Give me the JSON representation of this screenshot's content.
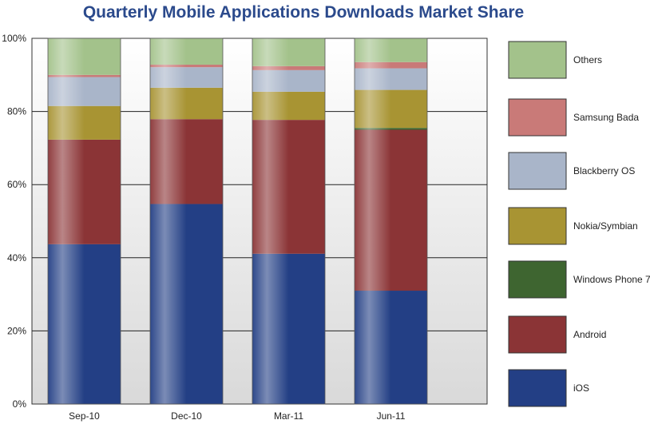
{
  "chart_data": {
    "type": "bar",
    "stacked": true,
    "title": "Quarterly Mobile Applications Downloads Market Share",
    "xlabel": "",
    "ylabel": "",
    "ylim": [
      0,
      100
    ],
    "yticks": [
      "0%",
      "20%",
      "40%",
      "60%",
      "80%",
      "100%"
    ],
    "ytick_values": [
      0,
      20,
      40,
      60,
      80,
      100
    ],
    "grid": true,
    "legend_position": "right",
    "categories": [
      "Sep-10",
      "Dec-10",
      "Mar-11",
      "Jun-11"
    ],
    "series": [
      {
        "name": "iOS",
        "color": "#233f85",
        "values": [
          43.7,
          54.7,
          41.1,
          31.0
        ]
      },
      {
        "name": "Android",
        "color": "#8b3436",
        "values": [
          28.6,
          23.2,
          36.6,
          44.0
        ]
      },
      {
        "name": "Windows Phone 7",
        "color": "#3e6530",
        "values": [
          0,
          0,
          0,
          0.5
        ]
      },
      {
        "name": "Nokia/Symbian",
        "color": "#a89433",
        "values": [
          9.2,
          8.6,
          7.7,
          10.4
        ]
      },
      {
        "name": "Blackberry OS",
        "color": "#a9b5c9",
        "values": [
          7.9,
          5.6,
          5.9,
          5.9
        ]
      },
      {
        "name": "Samsung Bada",
        "color": "#c97a78",
        "values": [
          0.6,
          0.7,
          1.1,
          1.7
        ]
      },
      {
        "name": "Others",
        "color": "#a3c28b",
        "values": [
          10.0,
          7.2,
          7.6,
          6.5
        ]
      }
    ]
  }
}
